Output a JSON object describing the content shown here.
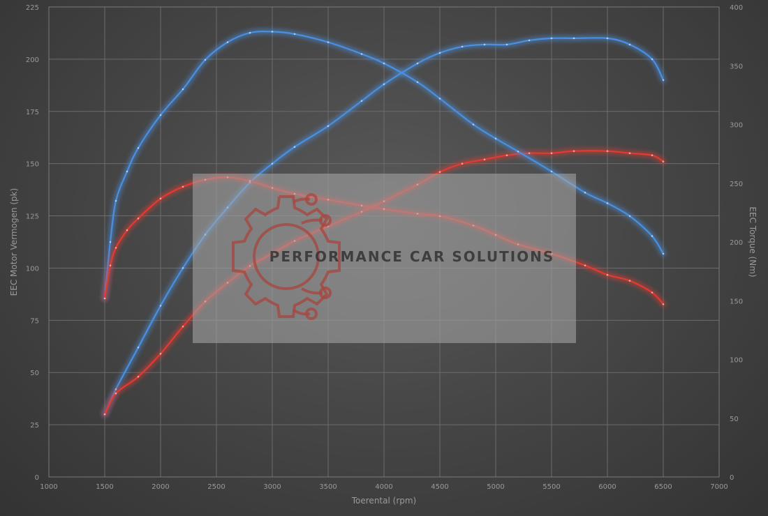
{
  "chart_data": {
    "type": "line",
    "title": "",
    "xlabel": "Toerental (rpm)",
    "ylabel_left": "EEC Motor Vermogen (pk)",
    "ylabel_right": "EEC Torque (Nm)",
    "xlim": [
      1000,
      7000
    ],
    "ylim_left": [
      0,
      225
    ],
    "ylim_right": [
      0,
      400
    ],
    "x_ticks": [
      "1000",
      "1500",
      "2000",
      "2500",
      "3000",
      "3500",
      "4000",
      "4500",
      "5000",
      "5500",
      "6000",
      "6500",
      "7000"
    ],
    "y_left_ticks": [
      "0",
      "25",
      "50",
      "75",
      "100",
      "125",
      "150",
      "175",
      "200",
      "225"
    ],
    "y_right_ticks": [
      "0",
      "50",
      "100",
      "150",
      "200",
      "250",
      "300",
      "350",
      "400"
    ],
    "grid": true,
    "series": [
      {
        "axis": "left",
        "kind": "power",
        "color": "#4a90e0",
        "x": [
          1500,
          1600,
          1800,
          2000,
          2200,
          2400,
          2600,
          2800,
          3000,
          3200,
          3500,
          3800,
          4000,
          4300,
          4500,
          4700,
          4900,
          5100,
          5300,
          5500,
          5700,
          6000,
          6200,
          6400,
          6500
        ],
        "y": [
          30,
          42,
          62,
          82,
          100,
          116,
          129,
          141,
          150,
          158,
          168,
          180,
          188,
          198,
          203,
          206,
          207,
          207,
          209,
          210,
          210,
          210,
          207,
          200,
          190
        ]
      },
      {
        "axis": "left",
        "kind": "power",
        "color": "#e23b30",
        "x": [
          1500,
          1600,
          1800,
          2000,
          2200,
          2400,
          2600,
          2800,
          3000,
          3200,
          3500,
          3800,
          4000,
          4300,
          4500,
          4700,
          4900,
          5100,
          5300,
          5500,
          5700,
          6000,
          6200,
          6400,
          6500
        ],
        "y": [
          30,
          40,
          48,
          59,
          72,
          84,
          93,
          101,
          107,
          113,
          120,
          127,
          132,
          140,
          146,
          150,
          152,
          154,
          155,
          155,
          156,
          156,
          155,
          154,
          151
        ]
      },
      {
        "axis": "right",
        "kind": "torque",
        "color": "#4a90e0",
        "x": [
          1500,
          1550,
          1600,
          1700,
          1800,
          2000,
          2200,
          2400,
          2600,
          2800,
          3000,
          3200,
          3500,
          3800,
          4000,
          4300,
          4500,
          4800,
          5000,
          5200,
          5500,
          5800,
          6000,
          6200,
          6400,
          6500
        ],
        "y": [
          152,
          200,
          235,
          260,
          280,
          308,
          330,
          355,
          370,
          378,
          379,
          377,
          370,
          360,
          352,
          336,
          322,
          300,
          288,
          277,
          260,
          242,
          233,
          222,
          205,
          190
        ]
      },
      {
        "axis": "right",
        "kind": "torque",
        "color": "#e23b30",
        "x": [
          1500,
          1550,
          1600,
          1700,
          1800,
          2000,
          2200,
          2400,
          2600,
          2800,
          3000,
          3200,
          3500,
          3800,
          4000,
          4300,
          4500,
          4800,
          5000,
          5200,
          5500,
          5800,
          6000,
          6200,
          6400,
          6500
        ],
        "y": [
          152,
          180,
          195,
          210,
          220,
          237,
          247,
          253,
          255,
          252,
          246,
          241,
          236,
          231,
          228,
          224,
          222,
          214,
          206,
          198,
          190,
          180,
          172,
          167,
          157,
          147
        ]
      }
    ]
  },
  "watermark": {
    "text": "PERFORMANCE CAR SOLUTIONS"
  }
}
